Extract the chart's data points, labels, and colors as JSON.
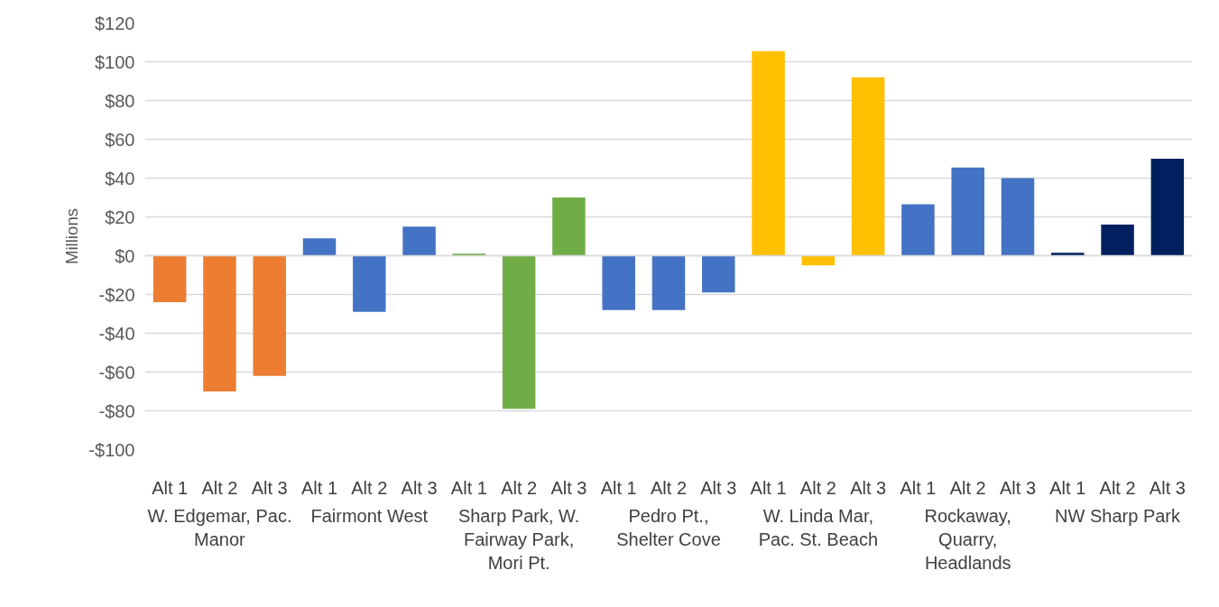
{
  "chart_data": {
    "type": "bar",
    "ylabel": "Millions",
    "categories": [
      "Alt 1",
      "Alt 2",
      "Alt 3",
      "Alt 1",
      "Alt 2",
      "Alt 3",
      "Alt 1",
      "Alt 2",
      "Alt 3",
      "Alt 1",
      "Alt 2",
      "Alt 3",
      "Alt 1",
      "Alt 2",
      "Alt 3",
      "Alt 1",
      "Alt 2",
      "Alt 3",
      "Alt 1",
      "Alt 2",
      "Alt 3"
    ],
    "values": [
      -24,
      -70,
      -62,
      9,
      -29,
      15,
      1,
      -79,
      30,
      -28,
      -28,
      -19,
      105.5,
      -5,
      92,
      26.5,
      45.5,
      40,
      1.5,
      16,
      50
    ],
    "colors": [
      "#ed7d31",
      "#ed7d31",
      "#ed7d31",
      "#4472c4",
      "#4472c4",
      "#4472c4",
      "#70ad47",
      "#70ad47",
      "#70ad47",
      "#4472c4",
      "#4472c4",
      "#4472c4",
      "#ffc000",
      "#ffc000",
      "#ffc000",
      "#4472c4",
      "#4472c4",
      "#4472c4",
      "#002060",
      "#002060",
      "#002060"
    ],
    "annotations": [
      "W. Edgemar, Pac. Manor",
      "Fairmont West",
      "Sharp Park, W. Fairway Park, Mori Pt.",
      "Pedro Pt., Shelter Cove",
      "W. Linda Mar, Pac. St. Beach",
      "Rockaway, Quarry, Headlands",
      "NW Sharp Park"
    ],
    "ylim": [
      -100,
      120
    ],
    "yticks": [
      {
        "value": -100,
        "label": "-$100"
      },
      {
        "value": -80,
        "label": "-$80"
      },
      {
        "value": -60,
        "label": "-$60"
      },
      {
        "value": -40,
        "label": "-$40"
      },
      {
        "value": -20,
        "label": "-$20"
      },
      {
        "value": 0,
        "label": "$0"
      },
      {
        "value": 20,
        "label": "$20"
      },
      {
        "value": 40,
        "label": "$40"
      },
      {
        "value": 60,
        "label": "$60"
      },
      {
        "value": 80,
        "label": "$80"
      },
      {
        "value": 100,
        "label": "$100"
      },
      {
        "value": 120,
        "label": "$120"
      }
    ],
    "grid": "y"
  }
}
